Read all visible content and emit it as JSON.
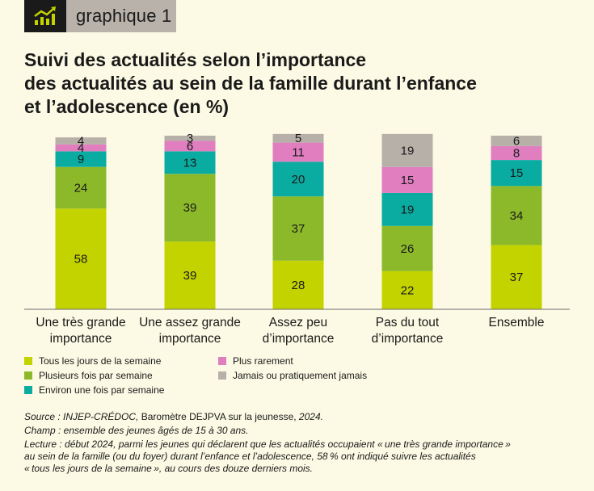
{
  "badge": {
    "label": "graphique 1",
    "icon": "chart-trend-icon"
  },
  "title": {
    "lines": [
      "Suivi des actualités selon l’importance",
      "des actualités au sein de la famille durant l’enfance",
      "et l’adolescence (en %)"
    ]
  },
  "chart_data": {
    "type": "bar",
    "stacked": true,
    "categories": [
      [
        "Une très grande",
        "importance"
      ],
      [
        "Une assez grande",
        "importance"
      ],
      [
        "Assez peu",
        "d’importance"
      ],
      [
        "Pas du tout",
        "d’importance"
      ],
      [
        "Ensemble"
      ]
    ],
    "series": [
      {
        "name": "Tous les jours de la semaine",
        "color": "#c3d300",
        "values": [
          58,
          39,
          28,
          22,
          37
        ]
      },
      {
        "name": "Plusieurs fois par semaine",
        "color": "#8cb92a",
        "values": [
          24,
          39,
          37,
          26,
          34
        ]
      },
      {
        "name": "Environ une fois par semaine",
        "color": "#0aaca2",
        "values": [
          9,
          13,
          20,
          19,
          15
        ]
      },
      {
        "name": "Plus rarement",
        "color": "#e07ec0",
        "values": [
          4,
          6,
          11,
          15,
          8
        ]
      },
      {
        "name": "Jamais ou pratiquement jamais",
        "color": "#b7b0a9",
        "values": [
          4,
          3,
          5,
          19,
          6
        ]
      }
    ],
    "ylim": [
      0,
      100
    ],
    "xlabel": "",
    "ylabel": "",
    "legend_position": "bottom"
  },
  "notes": {
    "source_label": "Source : ",
    "source_org": "INJEP-CRÉDOC, ",
    "source_text": "Baromètre DEJPVA sur la jeunesse, ",
    "source_year": "2024.",
    "champ": "Champ : ensemble des jeunes âgés de 15 à 30 ans.",
    "lecture_1": "Lecture : début 2024, parmi les jeunes qui déclarent que les actualités occupaient « une très grande importance »",
    "lecture_2": "au sein de la famille (ou du foyer) durant l’enfance et l’adolescence, 58 % ont indiqué suivre les actualités",
    "lecture_3": "« tous les jours de la semaine », au cours des douze derniers mois."
  }
}
